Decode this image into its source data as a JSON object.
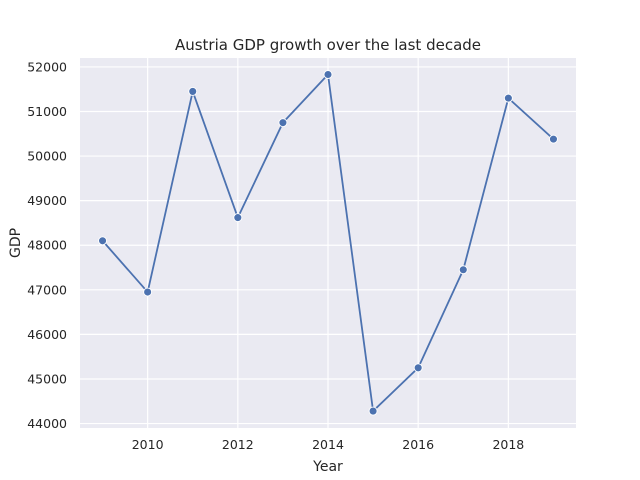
{
  "chart_data": {
    "type": "line",
    "title": "Austria GDP growth over the last decade",
    "xlabel": "Year",
    "ylabel": "GDP",
    "xlim": [
      2008.5,
      2019.5
    ],
    "ylim": [
      43900,
      52200
    ],
    "xticks": [
      2010,
      2012,
      2014,
      2016,
      2018
    ],
    "yticks": [
      44000,
      45000,
      46000,
      47000,
      48000,
      49000,
      50000,
      51000,
      52000
    ],
    "grid": true,
    "x": [
      2009,
      2010,
      2011,
      2012,
      2013,
      2014,
      2015,
      2016,
      2017,
      2018,
      2019
    ],
    "series": [
      {
        "values": [
          48100,
          46950,
          51450,
          48620,
          50750,
          51830,
          44280,
          45250,
          47450,
          51300,
          50380
        ]
      }
    ]
  },
  "colors": {
    "plot_background": "#eaeaf2",
    "grid": "#ffffff",
    "line": "#4c72b0",
    "text": "#262626"
  }
}
